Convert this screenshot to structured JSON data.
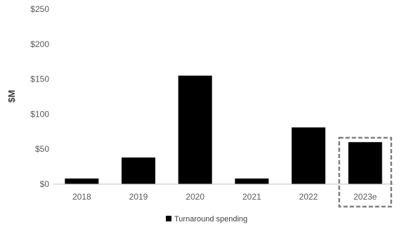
{
  "chart_data": {
    "type": "bar",
    "title": "",
    "xlabel": "",
    "ylabel": "$M",
    "categories": [
      "2018",
      "2019",
      "2020",
      "2021",
      "2022",
      "2023e"
    ],
    "series": [
      {
        "name": "Turnaround spending",
        "values": [
          8,
          38,
          155,
          8,
          81,
          60
        ]
      }
    ],
    "ylim": [
      0,
      250
    ],
    "yticks": [
      0,
      50,
      100,
      150,
      200,
      250
    ],
    "ytick_labels": [
      "$0",
      "$50",
      "$100",
      "$150",
      "$200",
      "$250"
    ],
    "grid": false,
    "legend_position": "bottom-center",
    "highlighted_category": "2023e",
    "highlight_style": "dashed-box",
    "colors": {
      "bar": "#000000",
      "axis": "#bfbfbf",
      "highlight_border": "#808080",
      "tick_text": "#595959"
    }
  }
}
